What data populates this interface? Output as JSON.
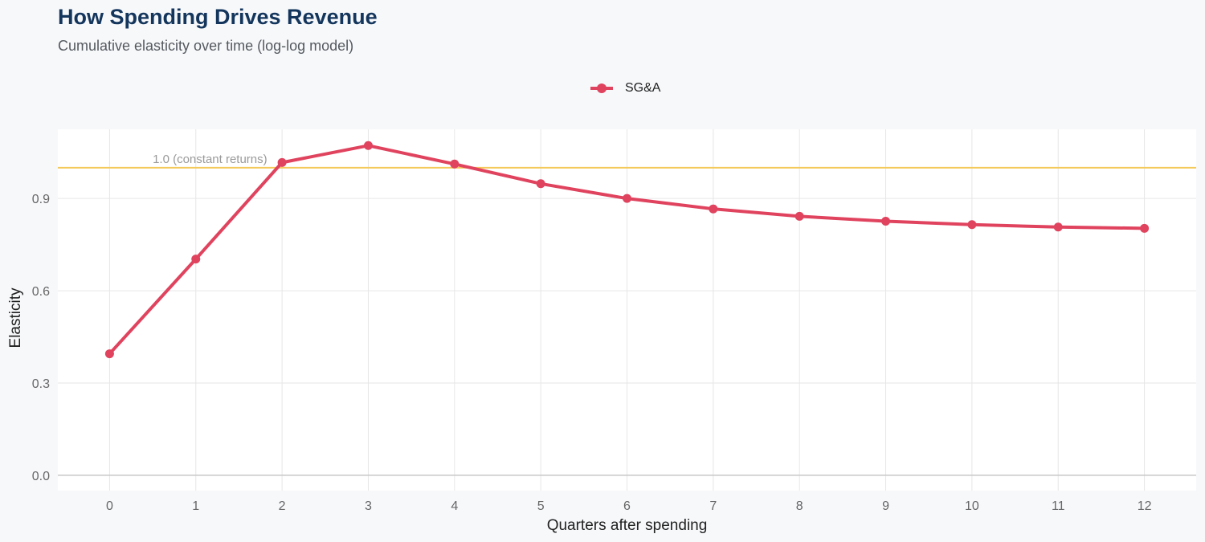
{
  "chart_data": {
    "type": "line",
    "title": "How Spending Drives Revenue",
    "subtitle": "Cumulative elasticity over time (log-log model)",
    "xlabel": "Quarters after spending",
    "ylabel": "Elasticity",
    "x": [
      0,
      1,
      2,
      3,
      4,
      5,
      6,
      7,
      8,
      9,
      10,
      11,
      12
    ],
    "xticks": [
      "0",
      "1",
      "2",
      "3",
      "4",
      "5",
      "6",
      "7",
      "8",
      "9",
      "10",
      "11",
      "12"
    ],
    "yticks": [
      "0.0",
      "0.3",
      "0.6",
      "0.9"
    ],
    "ytick_values": [
      0.0,
      0.3,
      0.6,
      0.9
    ],
    "xlim": [
      -0.6,
      12.6
    ],
    "ylim": [
      -0.05,
      1.125
    ],
    "series": [
      {
        "name": "SG&A",
        "color": "#e0435e",
        "values": [
          0.395,
          0.703,
          1.017,
          1.072,
          1.012,
          0.948,
          0.9,
          0.866,
          0.842,
          0.826,
          0.815,
          0.807,
          0.803
        ]
      }
    ],
    "reference_line": {
      "y": 1.0,
      "label": "1.0 (constant returns)",
      "color": "#f5c95a"
    },
    "grid": true,
    "legend_position": "top"
  }
}
